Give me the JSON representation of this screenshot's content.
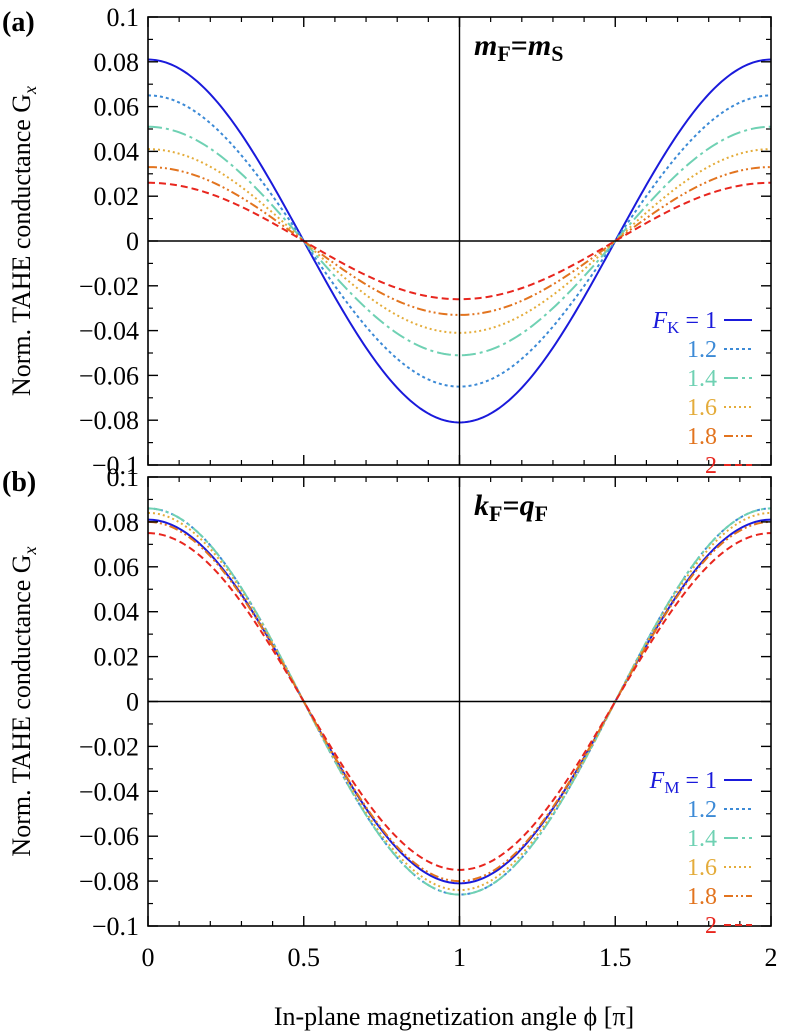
{
  "chart_data": [
    {
      "type": "line",
      "panel_label": "(a)",
      "annotation": {
        "a": "m",
        "a_sub": "F",
        "eq": "=",
        "b": "m",
        "b_sub": "S"
      },
      "ylabel": "Norm. TAHE conductance G",
      "ylabel_sub": "x",
      "xlabel": "",
      "xlim": [
        0,
        2
      ],
      "ylim": [
        -0.1,
        0.1
      ],
      "xticks": [
        0,
        0.5,
        1,
        1.5,
        2
      ],
      "yticks": [
        0.1,
        0.08,
        0.06,
        0.04,
        0.02,
        0,
        -0.02,
        -0.04,
        -0.06,
        -0.08,
        -0.1
      ],
      "ytick_labels": [
        "0.1",
        "0.08",
        "0.06",
        "0.04",
        "0.02",
        "0",
        "−0.02",
        "−0.04",
        "−0.06",
        "−0.08",
        "−0.1"
      ],
      "legend": {
        "position": "right",
        "var": "F",
        "var_sub": "K",
        "eq_prefix": " = "
      },
      "series": [
        {
          "name": "1",
          "amplitude": 0.081,
          "color": "#1a1adb",
          "dash": ""
        },
        {
          "name": "1.2",
          "amplitude": 0.065,
          "color": "#3c8ad6",
          "dash": "3,3"
        },
        {
          "name": "1.4",
          "amplitude": 0.051,
          "color": "#6fd1b3",
          "dash": "14,4,3,4"
        },
        {
          "name": "1.6",
          "amplitude": 0.041,
          "color": "#e4ac3a",
          "dash": "2,3"
        },
        {
          "name": "1.8",
          "amplitude": 0.033,
          "color": "#e2741f",
          "dash": "9,3,2,3,2,3"
        },
        {
          "name": "2",
          "amplitude": 0.026,
          "color": "#e8261e",
          "dash": "7,4"
        }
      ]
    },
    {
      "type": "line",
      "panel_label": "(b)",
      "annotation": {
        "a": "k",
        "a_sub": "F",
        "eq": "=",
        "b": "q",
        "b_sub": "F"
      },
      "ylabel": "Norm. TAHE conductance G",
      "ylabel_sub": "x",
      "xlabel": "In-plane magnetization angle ϕ [π]",
      "xlim": [
        0,
        2
      ],
      "ylim": [
        -0.1,
        0.1
      ],
      "xticks": [
        0,
        0.5,
        1,
        1.5,
        2
      ],
      "xtick_labels": [
        "0",
        "0.5",
        "1",
        "1.5",
        "2"
      ],
      "yticks": [
        0.1,
        0.08,
        0.06,
        0.04,
        0.02,
        0,
        -0.02,
        -0.04,
        -0.06,
        -0.08,
        -0.1
      ],
      "ytick_labels": [
        "0.1",
        "0.08",
        "0.06",
        "0.04",
        "0.02",
        "0",
        "−0.02",
        "−0.04",
        "−0.06",
        "−0.08",
        "−0.1"
      ],
      "legend": {
        "position": "right",
        "var": "F",
        "var_sub": "M",
        "eq_prefix": " = "
      },
      "series": [
        {
          "name": "1",
          "amplitude": 0.081,
          "color": "#1a1adb",
          "dash": ""
        },
        {
          "name": "1.2",
          "amplitude": 0.086,
          "color": "#3c8ad6",
          "dash": "3,3"
        },
        {
          "name": "1.4",
          "amplitude": 0.086,
          "color": "#6fd1b3",
          "dash": "14,4,3,4"
        },
        {
          "name": "1.6",
          "amplitude": 0.084,
          "color": "#e4ac3a",
          "dash": "2,3"
        },
        {
          "name": "1.8",
          "amplitude": 0.08,
          "color": "#e2741f",
          "dash": "9,3,2,3,2,3"
        },
        {
          "name": "2",
          "amplitude": 0.075,
          "color": "#e8261e",
          "dash": "7,4"
        }
      ]
    }
  ]
}
